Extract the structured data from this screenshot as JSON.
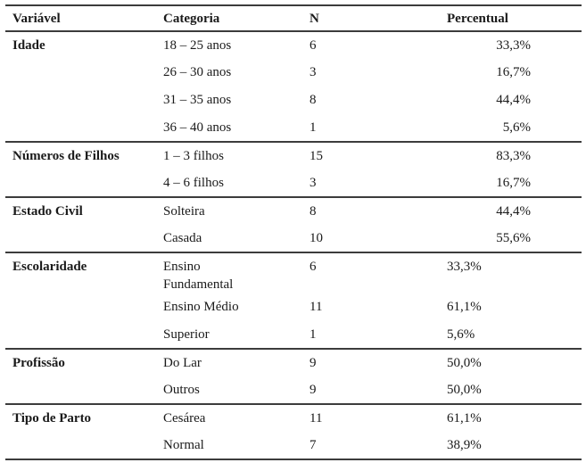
{
  "colors": {
    "background": "#ffffff",
    "text": "#1a1a1a",
    "rule_lines": "#3c3c3c"
  },
  "table": {
    "columns": {
      "variavel": "Variável",
      "categoria": "Categoria",
      "n": "N",
      "percentual": "Percentual"
    },
    "rows": [
      {
        "variavel": "Idade",
        "categoria": "18 – 25 anos",
        "n": "6",
        "percentual": "33,3%"
      },
      {
        "variavel": "",
        "categoria": "26 – 30 anos",
        "n": "3",
        "percentual": "16,7%"
      },
      {
        "variavel": "",
        "categoria": "31 – 35 anos",
        "n": "8",
        "percentual": "44,4%"
      },
      {
        "variavel": "",
        "categoria": "36 – 40 anos",
        "n": "1",
        "percentual": "5,6%"
      },
      {
        "variavel": "Números de Filhos",
        "categoria": "1 – 3 filhos",
        "n": "15",
        "percentual": "83,3%"
      },
      {
        "variavel": "",
        "categoria": "4 – 6 filhos",
        "n": "3",
        "percentual": "16,7%"
      },
      {
        "variavel": "Estado Civil",
        "categoria": "Solteira",
        "n": "8",
        "percentual": "44,4%"
      },
      {
        "variavel": "",
        "categoria": "Casada",
        "n": "10",
        "percentual": "55,6%"
      },
      {
        "variavel": "Escolaridade",
        "categoria": "Ensino\nFundamental",
        "n": "6",
        "percentual": "33,3%"
      },
      {
        "variavel": "",
        "categoria": "Ensino Médio",
        "n": "11",
        "percentual": "61,1%"
      },
      {
        "variavel": "",
        "categoria": "Superior",
        "n": "1",
        "percentual": "5,6%"
      },
      {
        "variavel": "Profissão",
        "categoria": "Do Lar",
        "n": "9",
        "percentual": "50,0%"
      },
      {
        "variavel": "",
        "categoria": "Outros",
        "n": "9",
        "percentual": "50,0%"
      },
      {
        "variavel": "Tipo de Parto",
        "categoria": "Cesárea",
        "n": "11",
        "percentual": "61,1%"
      },
      {
        "variavel": "",
        "categoria": "Normal",
        "n": "7",
        "percentual": "38,9%"
      }
    ]
  }
}
